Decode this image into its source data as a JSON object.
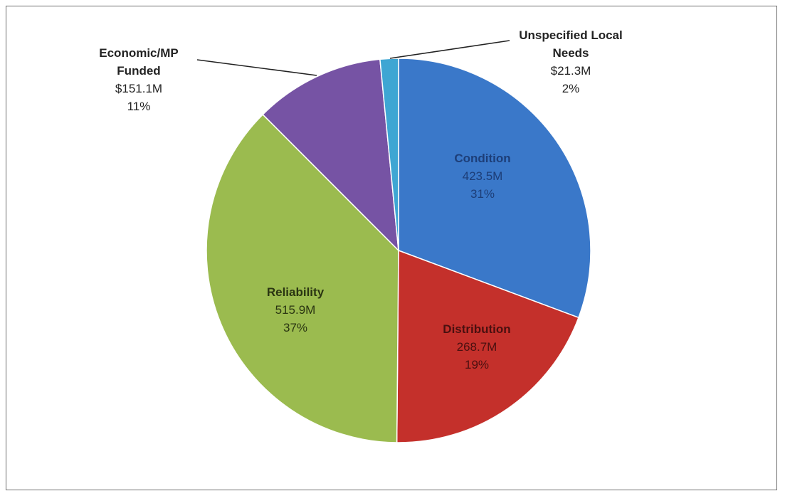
{
  "chart_data": {
    "type": "pie",
    "title": "",
    "slices": [
      {
        "name": "Condition",
        "value_label": "423.5M",
        "percent_label": "31%",
        "value": 423.5,
        "color": "#3a78c9",
        "text_color": "#1d3e78"
      },
      {
        "name": "Distribution",
        "value_label": "268.7M",
        "percent_label": "19%",
        "value": 268.7,
        "color": "#c4302b",
        "text_color": "#4a1010"
      },
      {
        "name": "Reliability",
        "value_label": "515.9M",
        "percent_label": "37%",
        "value": 515.9,
        "color": "#9bbb4f",
        "text_color": "#2a3512"
      },
      {
        "name": "Economic/MP Funded",
        "value_label": "$151.1M",
        "percent_label": "11%",
        "value": 151.1,
        "color": "#7653a4",
        "text_color": "#222222"
      },
      {
        "name": "Unspecified Local Needs",
        "value_label": "$21.3M",
        "percent_label": "2%",
        "value": 21.3,
        "color": "#3ea6d3",
        "text_color": "#222222"
      }
    ],
    "legend": "none"
  }
}
